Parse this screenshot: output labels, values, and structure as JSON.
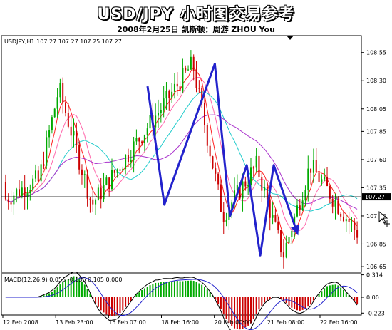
{
  "header": {
    "title": "USD/JPY 小时图交易参考",
    "subtitle": "2008年2月25日    凯斯顿：周游 ZHOU You"
  },
  "chart_data": {
    "type": "candlestick",
    "symbol_label": "USDJPY,H1  107.27 107.27 107.25 107.27",
    "y_ticks": [
      "108.55",
      "108.30",
      "108.05",
      "107.85",
      "107.60",
      "107.35",
      "107.27",
      "107.10",
      "106.85",
      "106.65"
    ],
    "ylim": [
      106.6,
      108.7
    ],
    "current_price": 107.27,
    "current_price_label": "107.27",
    "x_ticks": [
      "12 Feb 2008",
      "13 Feb 23:00",
      "15 Feb 07:00",
      "18 Feb 16:00",
      "20 Feb 00:00",
      "21 Feb 08:00",
      "22 Feb 16:00"
    ],
    "annotation_path": [
      {
        "x": 0.0,
        "y": 108.25
      },
      {
        "x": 0.1,
        "y": 107.2
      },
      {
        "x": 0.4,
        "y": 108.45
      },
      {
        "x": 0.49,
        "y": 107.1
      },
      {
        "x": 0.59,
        "y": 107.55
      },
      {
        "x": 0.67,
        "y": 106.75
      },
      {
        "x": 0.75,
        "y": 107.55
      },
      {
        "x": 0.89,
        "y": 106.95
      }
    ],
    "macd": {
      "label": "MACD(12,26,9)  0.055 -0.136 0.105 0.000",
      "y_ticks": [
        "0.314",
        "0.00",
        "-0.223"
      ],
      "ylim": [
        -0.25,
        0.33
      ]
    }
  }
}
